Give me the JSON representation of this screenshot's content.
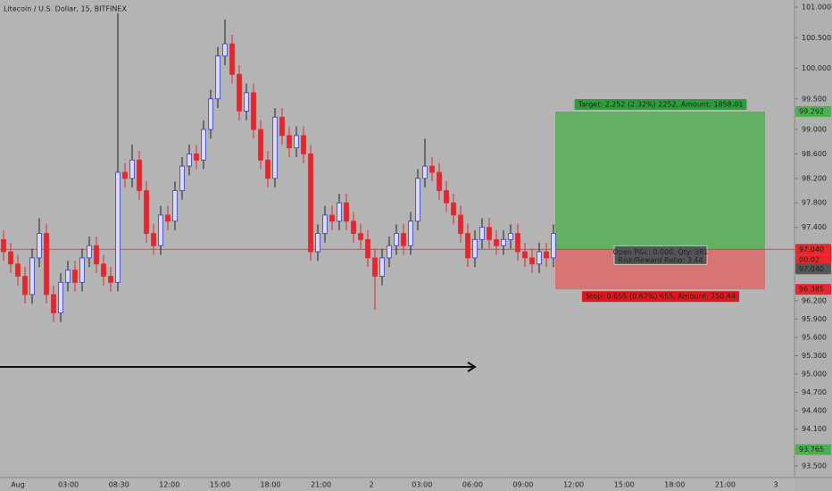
{
  "chart_data": {
    "type": "candlestick",
    "title": "Litecoin / U.S. Dollar, 15, BITFINEX",
    "up_color": "#3c3cc8",
    "up_fill": "#d8d8ee",
    "down_color": "#e8262b",
    "ylim": [
      93.307,
      101.117
    ],
    "yticks": [
      {
        "value": 101,
        "label": "101.000"
      },
      {
        "value": 100.5,
        "label": "100.500"
      },
      {
        "value": 100,
        "label": "100.000"
      },
      {
        "value": 99.5,
        "label": "99.500"
      },
      {
        "value": 99,
        "label": "99.000"
      },
      {
        "value": 98.6,
        "label": "98.600"
      },
      {
        "value": 98.2,
        "label": "98.200"
      },
      {
        "value": 97.8,
        "label": "97.800"
      },
      {
        "value": 97.4,
        "label": "97.400"
      },
      {
        "value": 96.2,
        "label": "96.200"
      },
      {
        "value": 95.9,
        "label": "95.900"
      },
      {
        "value": 95.6,
        "label": "95.600"
      },
      {
        "value": 95.3,
        "label": "95.300"
      },
      {
        "value": 95,
        "label": "95.000"
      },
      {
        "value": 94.7,
        "label": "94.700"
      },
      {
        "value": 94.4,
        "label": "94.400"
      },
      {
        "value": 94.1,
        "label": "94.100"
      },
      {
        "value": 93.5,
        "label": "93.500"
      }
    ],
    "x_labels": [
      "Aug",
      "03:00",
      "08:30",
      "12:00",
      "15:00",
      "18:00",
      "21:00",
      "2",
      "03:00",
      "06:00",
      "09:00",
      "12:00",
      "15:00",
      "18:00",
      "21:00",
      "3"
    ],
    "open": [
      97.2,
      97.0,
      96.8,
      96.6,
      96.3,
      96.9,
      97.3,
      96.3,
      96.0,
      96.5,
      96.7,
      96.5,
      96.9,
      97.1,
      96.8,
      96.6,
      96.5,
      98.3,
      98.2,
      98.5,
      98.0,
      97.3,
      97.1,
      97.6,
      97.5,
      98.0,
      98.4,
      98.6,
      98.5,
      99.0,
      99.5,
      100.2,
      100.4,
      99.9,
      99.3,
      99.6,
      99.0,
      98.5,
      98.2,
      99.2,
      98.9,
      98.7,
      98.9,
      98.6,
      97.0,
      97.3,
      97.6,
      97.5,
      97.8,
      97.5,
      97.3,
      97.2,
      96.9,
      96.6,
      96.9,
      97.1,
      97.3,
      97.1,
      97.5,
      98.2,
      98.4,
      98.3,
      98.0,
      97.8,
      97.6,
      97.3,
      96.9,
      97.2,
      97.4,
      97.2,
      97.1,
      97.2,
      97.3,
      97.0,
      96.9,
      96.8,
      97.0,
      96.9
    ],
    "high": [
      97.35,
      97.15,
      96.95,
      96.75,
      97.05,
      97.55,
      97.45,
      96.45,
      96.65,
      96.85,
      96.85,
      97.05,
      97.25,
      97.25,
      96.95,
      96.75,
      100.9,
      98.45,
      98.75,
      98.65,
      98.15,
      97.45,
      97.75,
      97.75,
      98.15,
      98.55,
      98.75,
      98.75,
      99.15,
      99.65,
      100.35,
      100.8,
      100.55,
      100.05,
      99.75,
      99.75,
      99.15,
      98.65,
      99.35,
      99.35,
      99.05,
      99.05,
      99.05,
      98.75,
      97.45,
      97.75,
      97.75,
      97.95,
      97.95,
      97.65,
      97.45,
      97.35,
      97.05,
      97.05,
      97.25,
      97.45,
      97.45,
      97.65,
      98.35,
      98.85,
      98.55,
      98.45,
      98.15,
      97.95,
      97.75,
      97.45,
      97.35,
      97.55,
      97.55,
      97.35,
      97.35,
      97.45,
      97.45,
      97.15,
      97.05,
      97.15,
      97.15,
      97.45
    ],
    "low": [
      96.85,
      96.65,
      96.45,
      96.15,
      96.15,
      96.75,
      96.15,
      95.85,
      95.85,
      96.35,
      96.35,
      96.35,
      96.75,
      96.65,
      96.45,
      96.35,
      96.35,
      98.05,
      98.05,
      97.85,
      97.15,
      96.95,
      96.95,
      97.35,
      97.35,
      97.85,
      98.25,
      98.35,
      98.35,
      98.85,
      99.35,
      100.05,
      99.75,
      99.15,
      99.15,
      98.85,
      98.35,
      98.05,
      98.05,
      98.75,
      98.55,
      98.55,
      98.45,
      96.85,
      96.85,
      97.15,
      97.35,
      97.35,
      97.35,
      97.15,
      97.05,
      96.75,
      96.05,
      96.45,
      96.75,
      96.95,
      96.95,
      96.95,
      97.35,
      98.05,
      98.15,
      97.85,
      97.65,
      97.45,
      97.15,
      96.75,
      96.75,
      97.05,
      97.05,
      96.95,
      96.95,
      97.05,
      96.85,
      96.75,
      96.65,
      96.65,
      96.75,
      96.75
    ],
    "close": [
      97.0,
      96.8,
      96.6,
      96.3,
      96.9,
      97.3,
      96.3,
      96.0,
      96.5,
      96.7,
      96.5,
      96.9,
      97.1,
      96.8,
      96.6,
      96.5,
      98.3,
      98.2,
      98.5,
      98.0,
      97.3,
      97.1,
      97.6,
      97.5,
      98.0,
      98.4,
      98.6,
      98.5,
      99.0,
      99.5,
      100.2,
      100.4,
      99.9,
      99.3,
      99.6,
      99.0,
      98.5,
      98.2,
      99.2,
      98.9,
      98.7,
      98.9,
      98.6,
      97.0,
      97.3,
      97.6,
      97.5,
      97.8,
      97.5,
      97.3,
      97.2,
      96.9,
      96.6,
      96.9,
      97.1,
      97.3,
      97.1,
      97.5,
      98.2,
      98.4,
      98.3,
      98.0,
      97.8,
      97.6,
      97.3,
      96.9,
      97.2,
      97.4,
      97.2,
      97.1,
      97.2,
      97.3,
      97.0,
      96.9,
      96.8,
      97.0,
      96.9,
      97.3
    ],
    "price_labels": [
      {
        "value": 99.292,
        "label": "99.292",
        "color": "#4caf50"
      },
      {
        "value": 97.04,
        "label": "97.040",
        "color": "#e8262b",
        "countdown": "00:02"
      },
      {
        "value": 97.04,
        "label": "97.040",
        "color": "#555555"
      },
      {
        "value": 96.385,
        "label": "96.385",
        "color": "#e8262b"
      },
      {
        "value": 93.765,
        "label": "93.765",
        "color": "#4caf50"
      }
    ],
    "position": {
      "target_text": "Target: 2.252 (2.32%) 2252, Amount: 1858.01",
      "pnl_text": "Open P&L: 0.000, Qty: 381",
      "ratio_text": "Risk/Reward Ratio: 3.44",
      "stop_text": "Stop: 0.655 (0.67%) 655, Amount: 750.44"
    }
  }
}
